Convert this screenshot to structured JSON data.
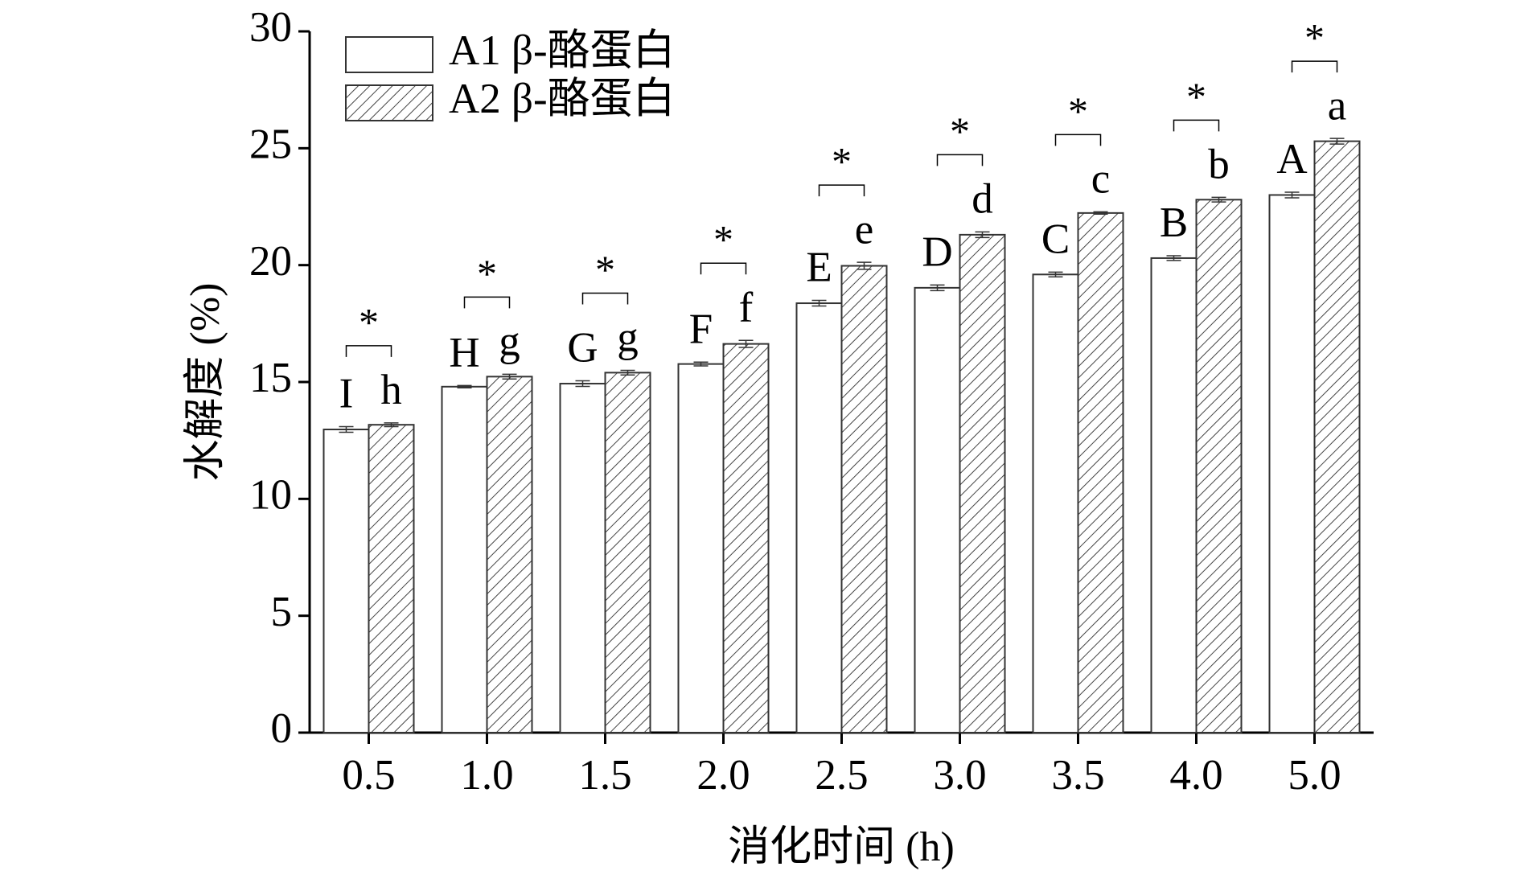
{
  "chart_data": {
    "type": "bar",
    "y_label": "水解度 (%)",
    "x_label": "消化时间 (h)",
    "categories": [
      "0.5",
      "1.0",
      "1.5",
      "2.0",
      "2.5",
      "3.0",
      "3.5",
      "4.0",
      "5.0"
    ],
    "series": [
      {
        "name": "A1 β-酪蛋白",
        "color": "#ffffff",
        "pattern": "none",
        "values": [
          12.97,
          14.8,
          14.93,
          15.77,
          18.37,
          19.03,
          19.6,
          20.3,
          23.0
        ],
        "errors": [
          0.12,
          0.05,
          0.12,
          0.08,
          0.12,
          0.12,
          0.1,
          0.1,
          0.12
        ],
        "labels": [
          "I",
          "H",
          "G",
          "F",
          "E",
          "D",
          "C",
          "B",
          "A"
        ]
      },
      {
        "name": "A2 β-酪蛋白",
        "color": "#ffffff",
        "pattern": "hatch",
        "values": [
          13.17,
          15.23,
          15.4,
          16.63,
          19.97,
          21.3,
          22.23,
          22.8,
          25.3
        ],
        "errors": [
          0.08,
          0.1,
          0.1,
          0.15,
          0.15,
          0.12,
          0.05,
          0.1,
          0.12
        ],
        "labels": [
          "h",
          "g",
          "g",
          "f",
          "e",
          "d",
          "c",
          "b",
          "a"
        ]
      }
    ],
    "significance": [
      "*",
      "*",
      "*",
      "*",
      "*",
      "*",
      "*",
      "*",
      "*"
    ],
    "ylim": [
      0,
      30
    ],
    "yticks": [
      0,
      5,
      10,
      15,
      20,
      25,
      30
    ],
    "legend": "upper left"
  }
}
